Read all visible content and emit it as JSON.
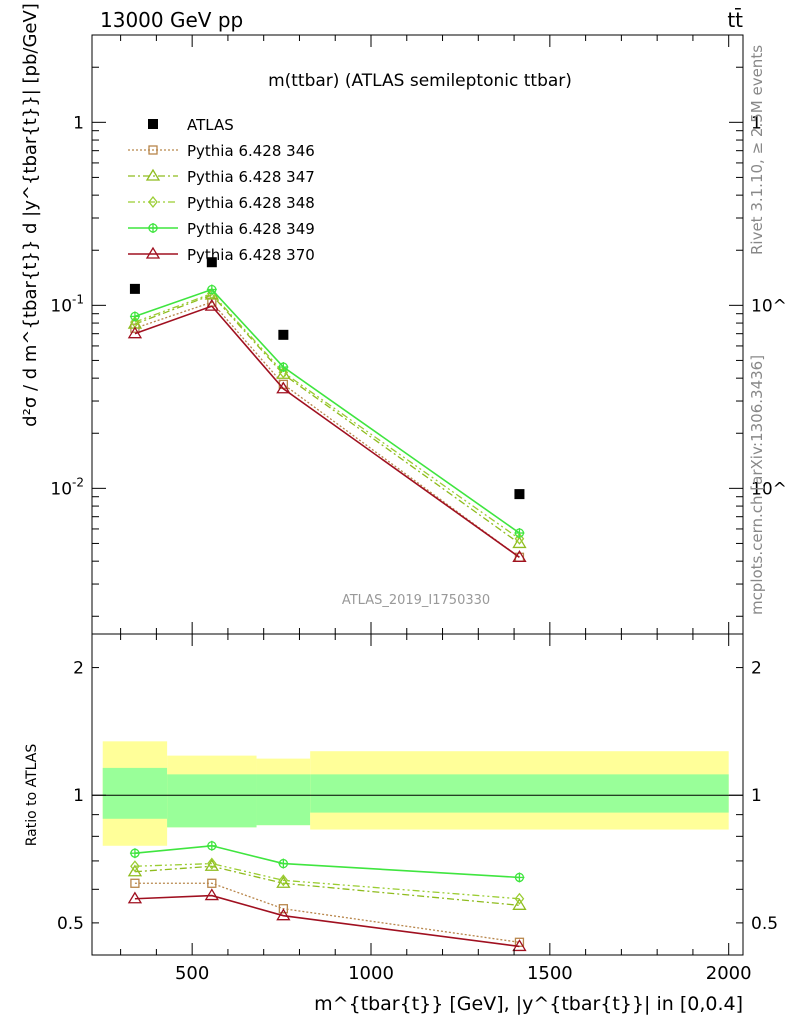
{
  "header": {
    "left": "13000 GeV pp",
    "right": "tt̄"
  },
  "side_text": {
    "rivet": "Rivet 3.1.10, ≥ 2.5M events",
    "mcplots": "mcplots.cern.ch [arXiv:1306.3436]"
  },
  "watermark": "ATLAS_2019_I1750330",
  "colors": {
    "atlas": "#000000",
    "p346": "#b8864b",
    "p347": "#8fbc1e",
    "p348": "#9acd32",
    "p349": "#3fe53f",
    "p370": "#a01020",
    "band_outer": "#ffff99",
    "band_inner": "#99ff99"
  },
  "chart_data": [
    {
      "type": "line",
      "title": "m(ttbar) (ATLAS semileptonic ttbar)",
      "ylabel": "d²σ / d m^{tbar{t}} d |y^{tbar{t}}| [pb/GeV]",
      "xlabel": "m^{tbar{t}} [GeV], |y^{tbar{t}}| in [0,0.4]",
      "x_scale": "linear",
      "y_scale": "log",
      "xlim": [
        220,
        2040
      ],
      "ylim": [
        0.0016,
        3
      ],
      "y_ticks": [
        {
          "v": 0.01,
          "label": "10^-2"
        },
        {
          "v": 0.1,
          "label": "10^-1"
        },
        {
          "v": 1,
          "label": "1"
        }
      ],
      "x": [
        340,
        555,
        755,
        1415
      ],
      "series": [
        {
          "name": "ATLAS",
          "marker": "square-filled",
          "style": "none",
          "values": [
            0.123,
            0.172,
            0.069,
            0.0093
          ]
        },
        {
          "name": "Pythia 6.428 346",
          "marker": "square-open",
          "style": "dotted",
          "values": [
            0.075,
            0.104,
            0.037,
            0.0042
          ]
        },
        {
          "name": "Pythia 6.428 347",
          "marker": "triangle-open",
          "style": "dashdot",
          "values": [
            0.079,
            0.114,
            0.042,
            0.005
          ]
        },
        {
          "name": "Pythia 6.428 348",
          "marker": "diamond-open",
          "style": "dashdotdot",
          "values": [
            0.081,
            0.116,
            0.043,
            0.0053
          ]
        },
        {
          "name": "Pythia 6.428 349",
          "marker": "cross-circle",
          "style": "solid",
          "values": [
            0.087,
            0.122,
            0.046,
            0.0057
          ]
        },
        {
          "name": "Pythia 6.428 370",
          "marker": "triangle-open",
          "style": "solid",
          "values": [
            0.07,
            0.099,
            0.035,
            0.0042
          ]
        }
      ]
    },
    {
      "type": "line",
      "ylabel": "Ratio to ATLAS",
      "x_scale": "linear",
      "y_scale": "log",
      "xlim": [
        220,
        2040
      ],
      "ylim": [
        0.42,
        2.4
      ],
      "x_ticks": [
        500,
        1000,
        1500,
        2000
      ],
      "y_ticks": [
        {
          "v": 0.5,
          "label": "0.5"
        },
        {
          "v": 1,
          "label": "1"
        },
        {
          "v": 2,
          "label": "2"
        }
      ],
      "bands": [
        {
          "x0": 250,
          "x1": 430,
          "inner": [
            0.88,
            1.16
          ],
          "outer": [
            0.76,
            1.34
          ]
        },
        {
          "x0": 430,
          "x1": 680,
          "inner": [
            0.84,
            1.12
          ],
          "outer": [
            0.84,
            1.24
          ]
        },
        {
          "x0": 680,
          "x1": 830,
          "inner": [
            0.85,
            1.12
          ],
          "outer": [
            0.85,
            1.22
          ]
        },
        {
          "x0": 830,
          "x1": 2000,
          "inner": [
            0.91,
            1.12
          ],
          "outer": [
            0.83,
            1.27
          ]
        }
      ],
      "x": [
        340,
        555,
        755,
        1415
      ],
      "series": [
        {
          "name": "Pythia 6.428 346",
          "values": [
            0.62,
            0.62,
            0.54,
            0.45
          ]
        },
        {
          "name": "Pythia 6.428 347",
          "values": [
            0.66,
            0.68,
            0.62,
            0.55
          ]
        },
        {
          "name": "Pythia 6.428 348",
          "values": [
            0.68,
            0.69,
            0.63,
            0.57
          ]
        },
        {
          "name": "Pythia 6.428 349",
          "values": [
            0.73,
            0.76,
            0.69,
            0.64
          ]
        },
        {
          "name": "Pythia 6.428 370",
          "values": [
            0.57,
            0.58,
            0.52,
            0.44
          ]
        }
      ]
    }
  ]
}
